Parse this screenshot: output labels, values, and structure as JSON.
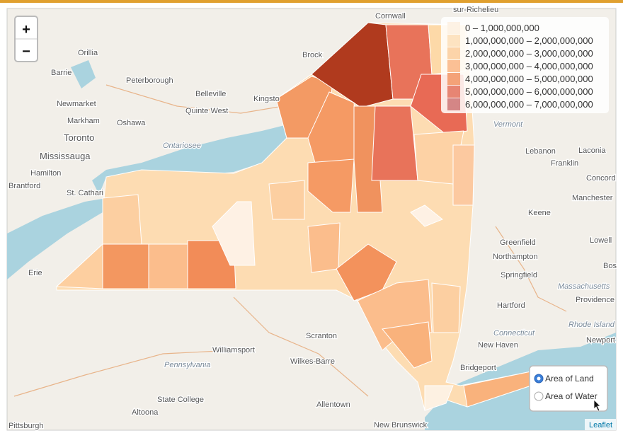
{
  "zoom_controls": {
    "zoom_in": "+",
    "zoom_out": "−"
  },
  "legend": {
    "items": [
      {
        "label": "0 – 1,000,000,000",
        "color": "#fdf1e2"
      },
      {
        "label": "1,000,000,000 – 2,000,000,000",
        "color": "#fde0bb"
      },
      {
        "label": "2,000,000,000 – 3,000,000,000",
        "color": "#fccfa1"
      },
      {
        "label": "3,000,000,000 – 4,000,000,000",
        "color": "#fbb98b"
      },
      {
        "label": "4,000,000,000 – 5,000,000,000",
        "color": "#f39a6c"
      },
      {
        "label": "5,000,000,000 – 6,000,000,000",
        "color": "#e47a66"
      },
      {
        "label": "6,000,000,000 – 7,000,000,000",
        "color": "#cf7b7b"
      }
    ]
  },
  "layer_control": {
    "options": [
      {
        "label": "Area of Land",
        "selected": true
      },
      {
        "label": "Area of Water",
        "selected": false
      }
    ]
  },
  "attribution": "Leaflet",
  "places": [
    "Cornwall",
    "sur-Richelieu",
    "Orillia",
    "Brock",
    "Barrie",
    "Peterborough",
    "Belleville",
    "Kingsto",
    "Newmarket",
    "Quinte West",
    "Markham",
    "Oshawa",
    "Toronto",
    "Ontariosee",
    "Mississauga",
    "Hamilton",
    "Brantford",
    "St. Cathari",
    "Erie",
    "Vermont",
    "Lebanon",
    "Laconia",
    "Franklin",
    "Concord",
    "Manchester",
    "Keene",
    "Lowell",
    "Greenfield",
    "Northampton",
    "Springfield",
    "Massachusetts",
    "Bos",
    "Providence",
    "Hartford",
    "Connecticut",
    "Rhode Island",
    "New Haven",
    "Newport",
    "Bridgeport",
    "Scranton",
    "Williamsport",
    "Pennsylvania",
    "Wilkes-Barre",
    "State College",
    "Allentown",
    "Altoona",
    "Pittsburgh",
    "New Brunswick"
  ]
}
